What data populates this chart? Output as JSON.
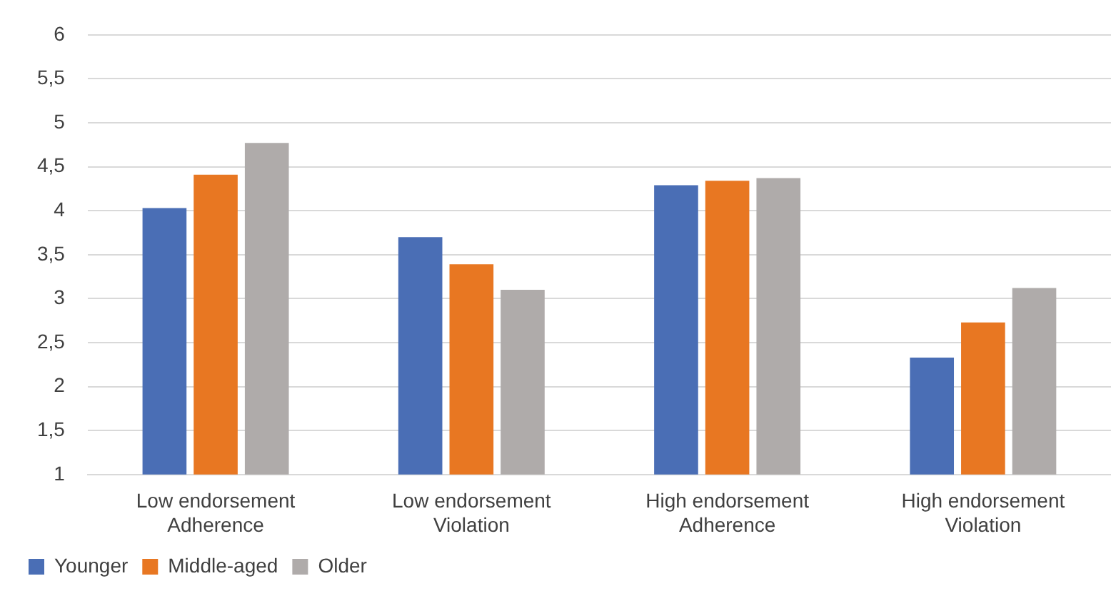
{
  "chart_data": {
    "type": "bar",
    "categories": [
      "Low endorsement\nAdherence",
      "Low endorsement\nViolation",
      "High endorsement\nAdherence",
      "High endorsement\nViolation"
    ],
    "series": [
      {
        "name": "Younger",
        "color": "#4a6eb5",
        "values": [
          4.03,
          3.7,
          4.29,
          2.33
        ]
      },
      {
        "name": "Middle-aged",
        "color": "#e87722",
        "values": [
          4.41,
          3.39,
          4.34,
          2.73
        ]
      },
      {
        "name": "Older",
        "color": "#afabaa",
        "values": [
          4.77,
          3.1,
          4.37,
          3.12
        ]
      }
    ],
    "ylim": [
      1,
      6
    ],
    "yticks": [
      1,
      {
        "value": 1.5,
        "label": "1,5"
      },
      2,
      {
        "value": 2.5,
        "label": "2,5"
      },
      3,
      {
        "value": 3.5,
        "label": "3,5"
      },
      4,
      {
        "value": 4.5,
        "label": "4,5"
      },
      5,
      {
        "value": 5.5,
        "label": "5,5"
      },
      6
    ],
    "grid": "y",
    "legend": "bottom left"
  }
}
